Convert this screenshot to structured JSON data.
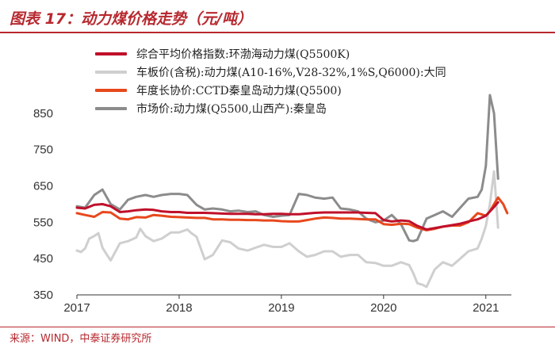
{
  "header": {
    "title": "图表 17：动力煤价格走势（元/吨）"
  },
  "footer": {
    "source": "来源：WIND，中泰证券研究所"
  },
  "chart_data": {
    "type": "line",
    "title": "图表 17：动力煤价格走势（元/吨）",
    "xlabel": "",
    "ylabel": "",
    "x_ticks": [
      "2017",
      "2018",
      "2019",
      "2020",
      "2021"
    ],
    "y_ticks": [
      350,
      450,
      550,
      650,
      750,
      850
    ],
    "ylim": [
      350,
      900
    ],
    "xlim": [
      2017.0,
      2021.25
    ],
    "grid": false,
    "legend_position": "top",
    "series": [
      {
        "name": "综合平均价格指数:环渤海动力煤(Q5500K)",
        "color": "#c0102a",
        "x": [
          2017.0,
          2017.08,
          2017.17,
          2017.25,
          2017.33,
          2017.42,
          2017.5,
          2017.58,
          2017.67,
          2017.75,
          2017.83,
          2017.92,
          2018.0,
          2018.08,
          2018.17,
          2018.25,
          2018.33,
          2018.42,
          2018.5,
          2018.58,
          2018.67,
          2018.75,
          2018.83,
          2018.92,
          2019.0,
          2019.08,
          2019.17,
          2019.25,
          2019.33,
          2019.42,
          2019.5,
          2019.58,
          2019.67,
          2019.75,
          2019.83,
          2019.92,
          2020.0,
          2020.08,
          2020.17,
          2020.25,
          2020.33,
          2020.42,
          2020.5,
          2020.58,
          2020.67,
          2020.75,
          2020.83,
          2020.92,
          2021.0,
          2021.08,
          2021.12
        ],
        "values": [
          590,
          588,
          598,
          600,
          594,
          578,
          580,
          583,
          585,
          584,
          580,
          578,
          578,
          576,
          576,
          576,
          575,
          574,
          573,
          573,
          573,
          572,
          572,
          573,
          573,
          572,
          572,
          574,
          576,
          577,
          577,
          577,
          577,
          577,
          576,
          575,
          556,
          552,
          555,
          553,
          540,
          530,
          534,
          538,
          542,
          546,
          552,
          558,
          568,
          592,
          605
        ]
      },
      {
        "name": "车板价(含税):动力煤(A10-16%,V28-32%,1%S,Q6000):大同",
        "color": "#cfcfcf",
        "x": [
          2017.0,
          2017.04,
          2017.08,
          2017.12,
          2017.17,
          2017.21,
          2017.25,
          2017.29,
          2017.33,
          2017.42,
          2017.5,
          2017.58,
          2017.62,
          2017.67,
          2017.75,
          2017.83,
          2017.92,
          2018.0,
          2018.08,
          2018.12,
          2018.17,
          2018.25,
          2018.33,
          2018.42,
          2018.5,
          2018.58,
          2018.67,
          2018.75,
          2018.83,
          2018.92,
          2019.0,
          2019.08,
          2019.17,
          2019.25,
          2019.33,
          2019.42,
          2019.5,
          2019.58,
          2019.67,
          2019.75,
          2019.83,
          2019.92,
          2020.0,
          2020.08,
          2020.17,
          2020.25,
          2020.29,
          2020.33,
          2020.38,
          2020.42,
          2020.5,
          2020.58,
          2020.67,
          2020.75,
          2020.83,
          2020.92,
          2020.96,
          2021.0,
          2021.04,
          2021.08,
          2021.12
        ],
        "values": [
          472,
          468,
          478,
          505,
          512,
          520,
          480,
          462,
          445,
          492,
          498,
          508,
          532,
          512,
          498,
          505,
          522,
          522,
          530,
          520,
          510,
          448,
          460,
          500,
          495,
          478,
          472,
          480,
          488,
          482,
          482,
          492,
          470,
          455,
          460,
          470,
          470,
          455,
          460,
          460,
          440,
          438,
          430,
          430,
          440,
          432,
          410,
          382,
          378,
          372,
          420,
          440,
          430,
          450,
          470,
          478,
          505,
          540,
          600,
          690,
          535
        ]
      },
      {
        "name": "年度长协价:CCTD秦皇岛动力煤(Q5500)",
        "color": "#e8481c",
        "x": [
          2017.0,
          2017.08,
          2017.17,
          2017.25,
          2017.33,
          2017.42,
          2017.5,
          2017.58,
          2017.67,
          2017.75,
          2017.83,
          2017.92,
          2018.0,
          2018.08,
          2018.17,
          2018.25,
          2018.33,
          2018.42,
          2018.5,
          2018.58,
          2018.67,
          2018.75,
          2018.83,
          2018.92,
          2019.0,
          2019.08,
          2019.17,
          2019.25,
          2019.33,
          2019.42,
          2019.5,
          2019.58,
          2019.67,
          2019.75,
          2019.83,
          2019.92,
          2020.0,
          2020.08,
          2020.17,
          2020.25,
          2020.33,
          2020.42,
          2020.5,
          2020.58,
          2020.67,
          2020.75,
          2020.83,
          2020.92,
          2021.0,
          2021.04,
          2021.08,
          2021.12,
          2021.17,
          2021.21
        ],
        "values": [
          575,
          570,
          565,
          578,
          577,
          560,
          558,
          564,
          563,
          570,
          568,
          565,
          564,
          563,
          562,
          562,
          558,
          558,
          557,
          557,
          556,
          556,
          555,
          555,
          553,
          552,
          552,
          556,
          560,
          563,
          562,
          560,
          560,
          559,
          558,
          558,
          545,
          543,
          546,
          545,
          535,
          528,
          532,
          538,
          541,
          541,
          550,
          575,
          568,
          580,
          600,
          618,
          600,
          575
        ]
      },
      {
        "name": "市场价:动力煤(Q5500,山西产):秦皇岛",
        "color": "#8c8c8c",
        "x": [
          2017.0,
          2017.08,
          2017.17,
          2017.25,
          2017.33,
          2017.42,
          2017.5,
          2017.58,
          2017.67,
          2017.75,
          2017.83,
          2017.92,
          2018.0,
          2018.08,
          2018.17,
          2018.25,
          2018.33,
          2018.42,
          2018.5,
          2018.58,
          2018.67,
          2018.75,
          2018.83,
          2018.92,
          2019.0,
          2019.08,
          2019.17,
          2019.25,
          2019.33,
          2019.42,
          2019.5,
          2019.58,
          2019.67,
          2019.75,
          2019.83,
          2019.92,
          2020.0,
          2020.08,
          2020.17,
          2020.25,
          2020.29,
          2020.33,
          2020.42,
          2020.5,
          2020.58,
          2020.67,
          2020.75,
          2020.83,
          2020.92,
          2020.96,
          2021.0,
          2021.04,
          2021.08,
          2021.12
        ],
        "values": [
          594,
          590,
          625,
          640,
          600,
          585,
          612,
          620,
          625,
          620,
          625,
          628,
          628,
          625,
          598,
          585,
          588,
          585,
          580,
          582,
          578,
          580,
          570,
          565,
          568,
          570,
          628,
          625,
          618,
          615,
          618,
          588,
          585,
          580,
          560,
          550,
          555,
          570,
          545,
          500,
          498,
          502,
          560,
          570,
          580,
          565,
          590,
          615,
          620,
          640,
          705,
          900,
          850,
          670
        ]
      }
    ]
  }
}
